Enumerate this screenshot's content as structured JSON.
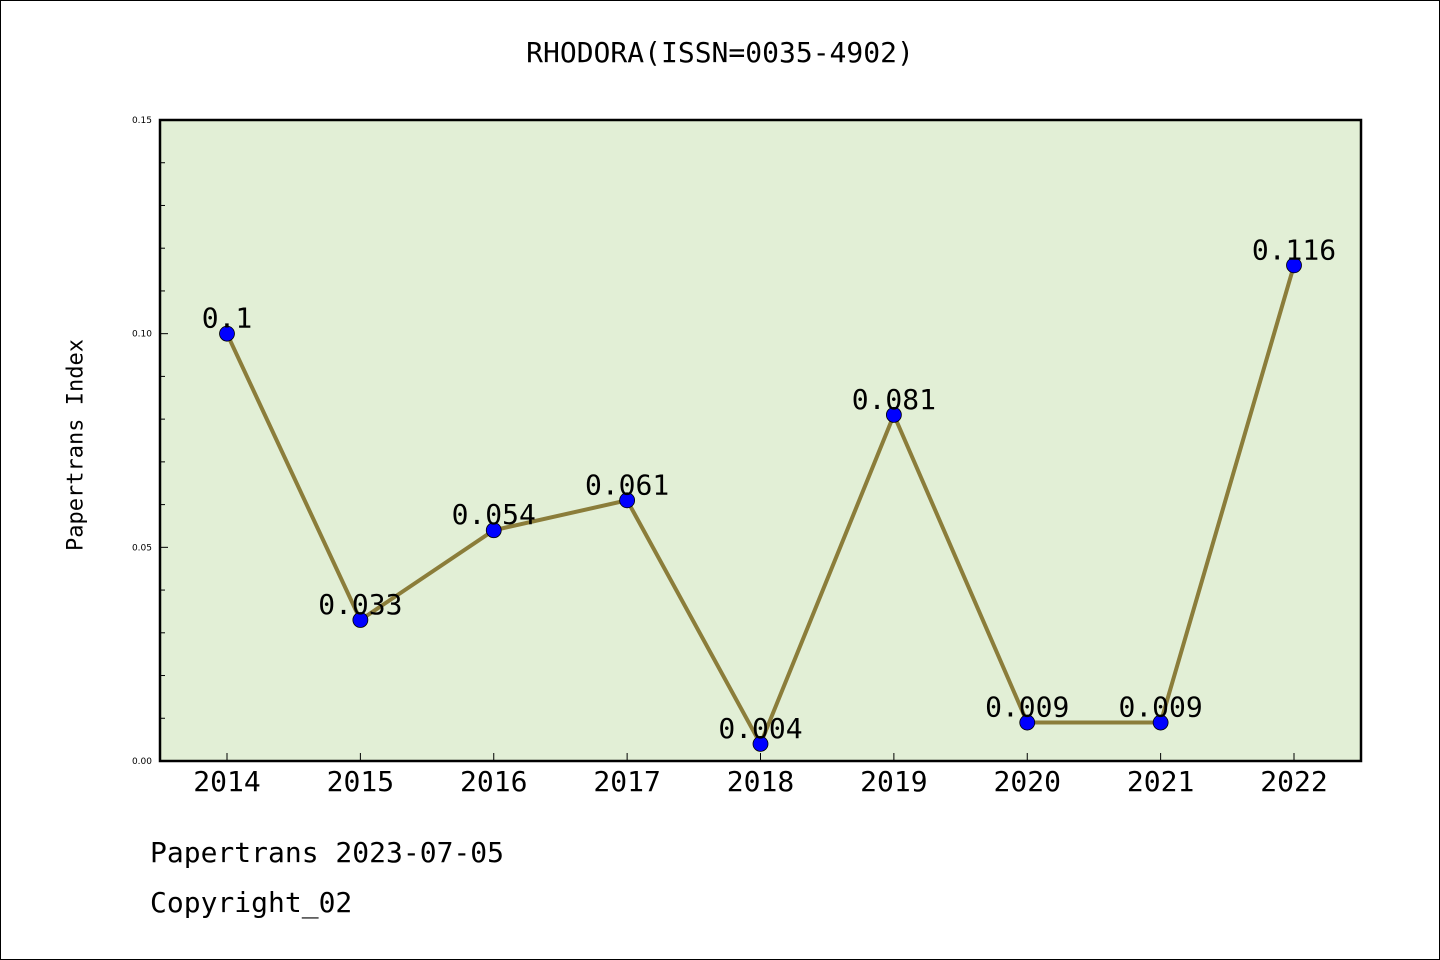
{
  "chart_data": {
    "type": "line",
    "title": "RHODORA(ISSN=0035-4902)",
    "xlabel": "",
    "ylabel": "Papertrans Index",
    "categories": [
      "2014",
      "2015",
      "2016",
      "2017",
      "2018",
      "2019",
      "2020",
      "2021",
      "2022"
    ],
    "values": [
      0.1,
      0.033,
      0.054,
      0.061,
      0.004,
      0.081,
      0.009,
      0.009,
      0.116
    ],
    "data_labels": [
      "0.1",
      "0.033",
      "0.054",
      "0.061",
      "0.004",
      "0.081",
      "0.009",
      "0.009",
      "0.116"
    ],
    "ylim": [
      0.0,
      0.15
    ],
    "y_ticks": [
      "0.00",
      "0.05",
      "0.10",
      "0.15"
    ],
    "grid": false,
    "colors": {
      "plot_background": "#e2efd6",
      "line": "#8b7d3a",
      "marker": "#0000ff"
    }
  },
  "footer": {
    "date_line": "Papertrans 2023-07-05",
    "copyright": "Copyright_02"
  }
}
